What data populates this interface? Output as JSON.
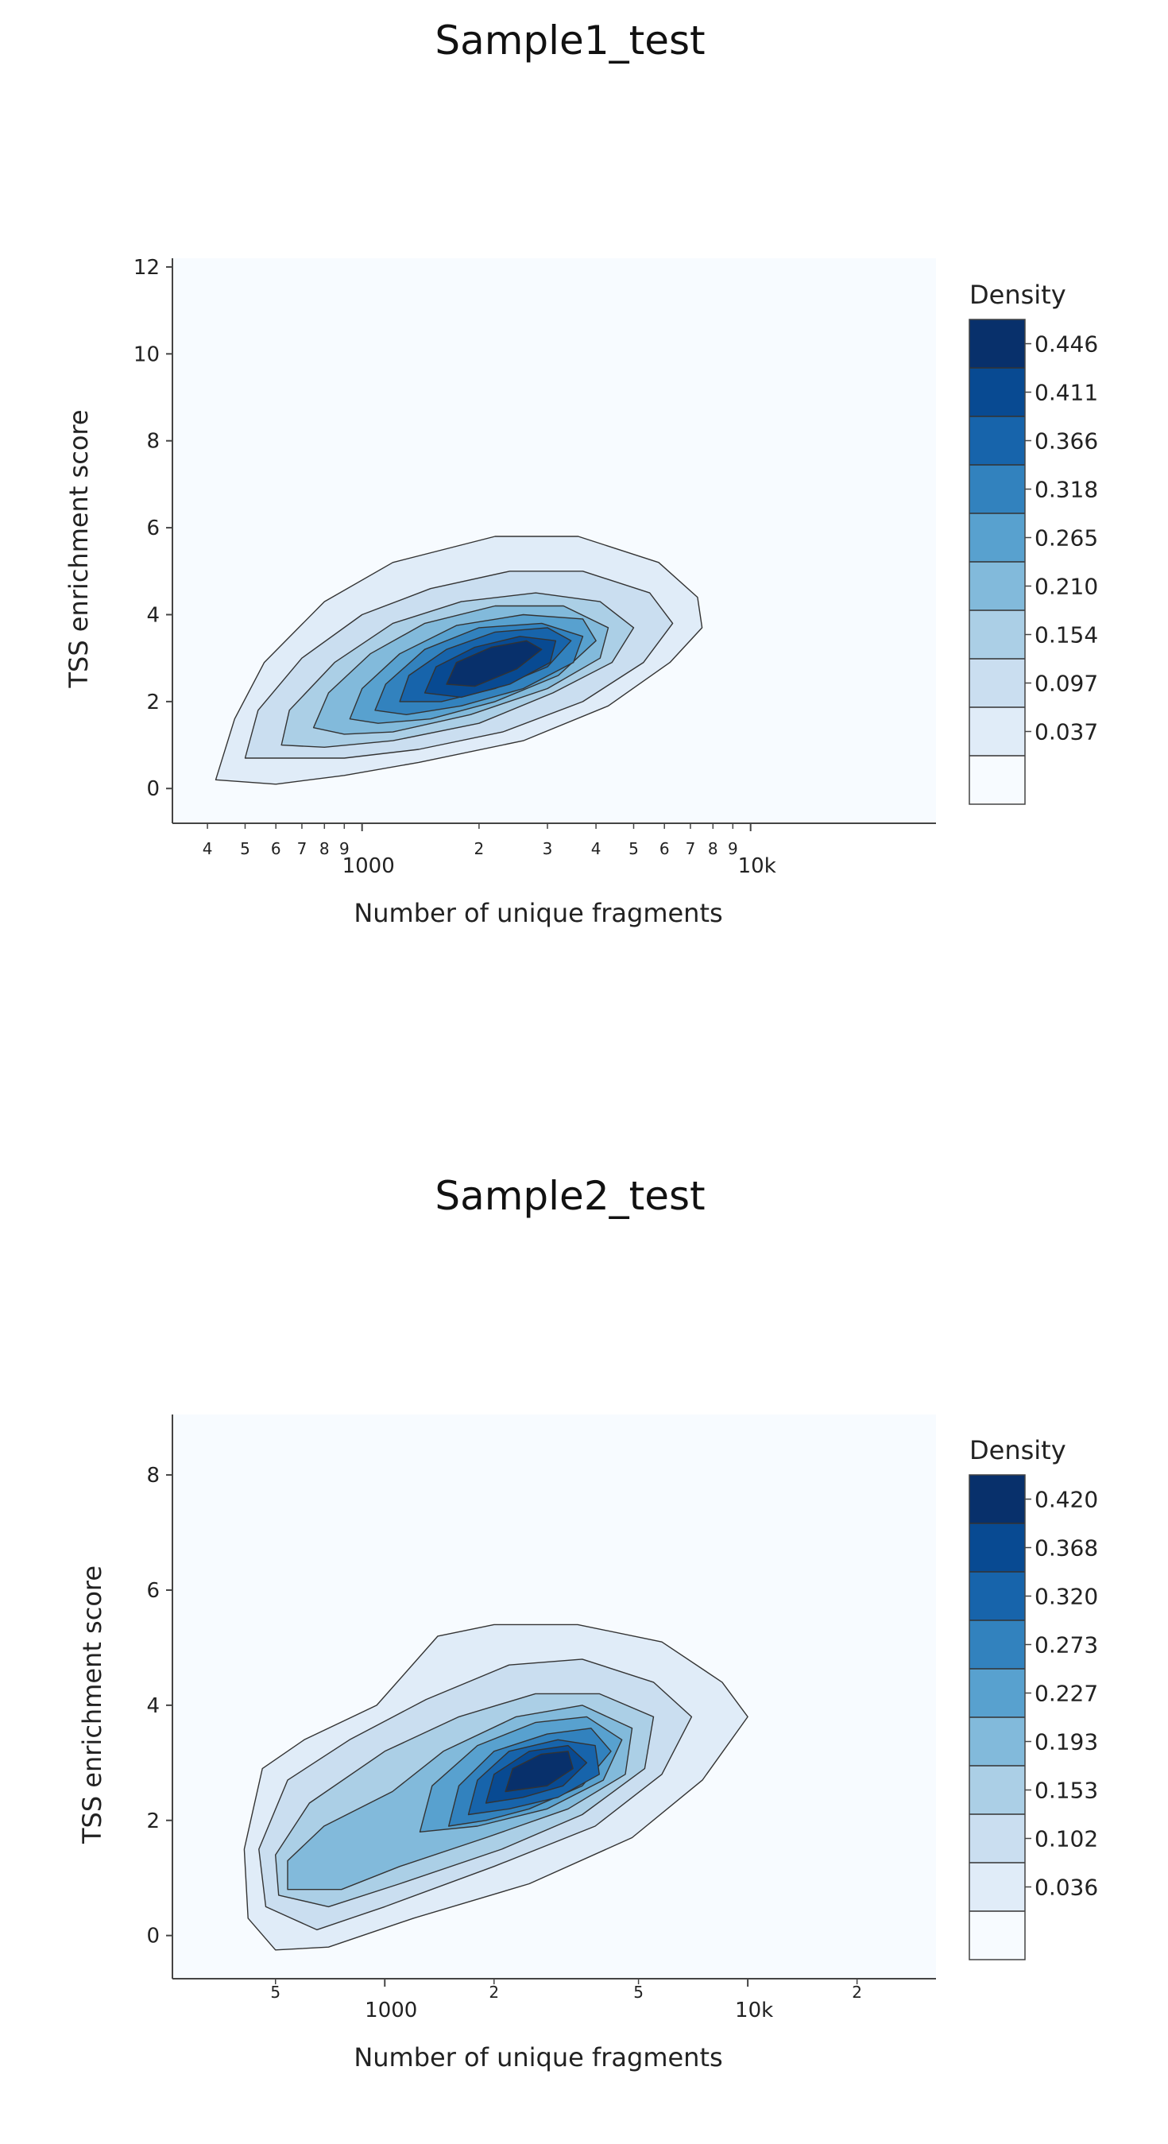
{
  "chart_data": [
    {
      "type": "contour",
      "title": "Sample1_test",
      "xlabel": "Number of unique fragments",
      "ylabel": "TSS enrichment score",
      "xscale": "log",
      "xlim": [
        325,
        30000
      ],
      "ylim": [
        -0.8,
        12.2
      ],
      "y_ticks": [
        0,
        2,
        4,
        6,
        8,
        10,
        12
      ],
      "x_major_ticks": [
        {
          "value": 1000,
          "label": "1000"
        },
        {
          "value": 10000,
          "label": "10k"
        }
      ],
      "x_minor_ticks": [
        {
          "value": 400,
          "label": "4"
        },
        {
          "value": 500,
          "label": "5"
        },
        {
          "value": 600,
          "label": "6"
        },
        {
          "value": 700,
          "label": "7"
        },
        {
          "value": 800,
          "label": "8"
        },
        {
          "value": 900,
          "label": "9"
        },
        {
          "value": 2000,
          "label": "2"
        },
        {
          "value": 3000,
          "label": "3"
        },
        {
          "value": 4000,
          "label": "4"
        },
        {
          "value": 5000,
          "label": "5"
        },
        {
          "value": 6000,
          "label": "6"
        },
        {
          "value": 7000,
          "label": "7"
        },
        {
          "value": 8000,
          "label": "8"
        },
        {
          "value": 9000,
          "label": "9"
        }
      ],
      "colorbar": {
        "title": "Density",
        "ticks": [
          "0.446",
          "0.411",
          "0.366",
          "0.318",
          "0.265",
          "0.210",
          "0.154",
          "0.097",
          "0.037"
        ]
      },
      "colors": [
        "#f7fbff",
        "#e0ecf8",
        "#cadef0",
        "#abcfe6",
        "#82badb",
        "#58a1cf",
        "#3282be",
        "#1764ab",
        "#084a92",
        "#08306b"
      ],
      "density_peak": {
        "x": 2000,
        "y": 2.7
      },
      "density_levels": [
        [
          [
            420,
            0.2
          ],
          [
            470,
            1.6
          ],
          [
            560,
            2.9
          ],
          [
            800,
            4.3
          ],
          [
            1200,
            5.2
          ],
          [
            2200,
            5.8
          ],
          [
            3600,
            5.8
          ],
          [
            5800,
            5.2
          ],
          [
            7300,
            4.4
          ],
          [
            7500,
            3.7
          ],
          [
            6200,
            2.9
          ],
          [
            4300,
            1.9
          ],
          [
            2600,
            1.1
          ],
          [
            1400,
            0.6
          ],
          [
            900,
            0.3
          ],
          [
            600,
            0.1
          ]
        ],
        [
          [
            500,
            0.7
          ],
          [
            540,
            1.8
          ],
          [
            700,
            3.0
          ],
          [
            1000,
            4.0
          ],
          [
            1500,
            4.6
          ],
          [
            2400,
            5.0
          ],
          [
            3700,
            5.0
          ],
          [
            5500,
            4.5
          ],
          [
            6300,
            3.8
          ],
          [
            5300,
            2.9
          ],
          [
            3700,
            2.0
          ],
          [
            2300,
            1.3
          ],
          [
            1400,
            0.9
          ],
          [
            900,
            0.7
          ]
        ],
        [
          [
            620,
            1.0
          ],
          [
            650,
            1.8
          ],
          [
            850,
            2.9
          ],
          [
            1200,
            3.8
          ],
          [
            1800,
            4.3
          ],
          [
            2800,
            4.5
          ],
          [
            4100,
            4.3
          ],
          [
            5000,
            3.7
          ],
          [
            4400,
            2.9
          ],
          [
            3100,
            2.2
          ],
          [
            2000,
            1.5
          ],
          [
            1200,
            1.1
          ],
          [
            800,
            0.95
          ]
        ],
        [
          [
            750,
            1.4
          ],
          [
            820,
            2.2
          ],
          [
            1050,
            3.1
          ],
          [
            1450,
            3.8
          ],
          [
            2200,
            4.2
          ],
          [
            3300,
            4.2
          ],
          [
            4300,
            3.7
          ],
          [
            4100,
            3.0
          ],
          [
            3000,
            2.3
          ],
          [
            1900,
            1.7
          ],
          [
            1200,
            1.3
          ],
          [
            900,
            1.25
          ]
        ],
        [
          [
            930,
            1.6
          ],
          [
            1000,
            2.3
          ],
          [
            1250,
            3.1
          ],
          [
            1750,
            3.75
          ],
          [
            2600,
            4.0
          ],
          [
            3700,
            3.9
          ],
          [
            4000,
            3.4
          ],
          [
            3200,
            2.6
          ],
          [
            2200,
            2.0
          ],
          [
            1500,
            1.6
          ],
          [
            1100,
            1.5
          ]
        ],
        [
          [
            1080,
            1.8
          ],
          [
            1150,
            2.4
          ],
          [
            1450,
            3.2
          ],
          [
            2000,
            3.7
          ],
          [
            2900,
            3.8
          ],
          [
            3700,
            3.5
          ],
          [
            3500,
            2.9
          ],
          [
            2600,
            2.3
          ],
          [
            1800,
            1.9
          ],
          [
            1300,
            1.7
          ]
        ],
        [
          [
            1250,
            2.0
          ],
          [
            1320,
            2.6
          ],
          [
            1650,
            3.2
          ],
          [
            2200,
            3.6
          ],
          [
            3000,
            3.7
          ],
          [
            3450,
            3.4
          ],
          [
            3000,
            2.8
          ],
          [
            2200,
            2.3
          ],
          [
            1600,
            2.0
          ]
        ],
        [
          [
            1450,
            2.2
          ],
          [
            1550,
            2.8
          ],
          [
            1950,
            3.25
          ],
          [
            2550,
            3.5
          ],
          [
            3150,
            3.4
          ],
          [
            3050,
            2.9
          ],
          [
            2400,
            2.4
          ],
          [
            1800,
            2.1
          ]
        ],
        [
          [
            1650,
            2.4
          ],
          [
            1750,
            2.9
          ],
          [
            2150,
            3.25
          ],
          [
            2650,
            3.4
          ],
          [
            2900,
            3.2
          ],
          [
            2500,
            2.75
          ],
          [
            1950,
            2.35
          ]
        ]
      ]
    },
    {
      "type": "contour",
      "title": "Sample2_test",
      "xlabel": "Number of unique fragments",
      "ylabel": "TSS enrichment score",
      "xscale": "log",
      "xlim": [
        260,
        33000
      ],
      "ylim": [
        -0.75,
        9.05
      ],
      "y_ticks": [
        0,
        2,
        4,
        6,
        8
      ],
      "x_major_ticks": [
        {
          "value": 1000,
          "label": "1000"
        },
        {
          "value": 10000,
          "label": "10k"
        }
      ],
      "x_minor_ticks": [
        {
          "value": 500,
          "label": "5"
        },
        {
          "value": 2000,
          "label": "2"
        },
        {
          "value": 5000,
          "label": "5"
        },
        {
          "value": 20000,
          "label": "2"
        }
      ],
      "colorbar": {
        "title": "Density",
        "ticks": [
          "0.420",
          "0.368",
          "0.320",
          "0.273",
          "0.227",
          "0.193",
          "0.153",
          "0.102",
          "0.036"
        ]
      },
      "colors": [
        "#f7fbff",
        "#e0ecf8",
        "#cadef0",
        "#abcfe6",
        "#82badb",
        "#58a1cf",
        "#3282be",
        "#1764ab",
        "#084a92",
        "#08306b"
      ],
      "density_peak": {
        "x": 2400,
        "y": 2.9
      },
      "density_levels": [
        [
          [
            420,
            0.3
          ],
          [
            410,
            1.5
          ],
          [
            460,
            2.9
          ],
          [
            600,
            3.4
          ],
          [
            950,
            4.0
          ],
          [
            1400,
            5.2
          ],
          [
            2000,
            5.4
          ],
          [
            3400,
            5.4
          ],
          [
            5800,
            5.1
          ],
          [
            8500,
            4.4
          ],
          [
            10000,
            3.8
          ],
          [
            7500,
            2.7
          ],
          [
            4800,
            1.7
          ],
          [
            2500,
            0.9
          ],
          [
            1200,
            0.3
          ],
          [
            700,
            -0.2
          ],
          [
            500,
            -0.25
          ]
        ],
        [
          [
            470,
            0.5
          ],
          [
            450,
            1.5
          ],
          [
            540,
            2.7
          ],
          [
            800,
            3.4
          ],
          [
            1300,
            4.1
          ],
          [
            2200,
            4.7
          ],
          [
            3500,
            4.8
          ],
          [
            5500,
            4.4
          ],
          [
            7000,
            3.8
          ],
          [
            5800,
            2.8
          ],
          [
            3800,
            1.9
          ],
          [
            2000,
            1.2
          ],
          [
            1000,
            0.5
          ],
          [
            650,
            0.1
          ]
        ],
        [
          [
            510,
            0.7
          ],
          [
            500,
            1.4
          ],
          [
            620,
            2.3
          ],
          [
            1000,
            3.2
          ],
          [
            1600,
            3.8
          ],
          [
            2600,
            4.2
          ],
          [
            3900,
            4.2
          ],
          [
            5500,
            3.8
          ],
          [
            5200,
            2.9
          ],
          [
            3500,
            2.1
          ],
          [
            2100,
            1.5
          ],
          [
            1100,
            0.9
          ],
          [
            700,
            0.5
          ]
        ],
        [
          [
            540,
            0.8
          ],
          [
            540,
            1.3
          ],
          [
            680,
            1.9
          ],
          [
            1050,
            2.5
          ],
          [
            1450,
            3.2
          ],
          [
            2300,
            3.8
          ],
          [
            3500,
            4.0
          ],
          [
            4800,
            3.6
          ],
          [
            4600,
            2.8
          ],
          [
            3200,
            2.2
          ],
          [
            1900,
            1.7
          ],
          [
            1100,
            1.2
          ],
          [
            760,
            0.8
          ]
        ],
        [
          [
            1250,
            1.8
          ],
          [
            1350,
            2.6
          ],
          [
            1800,
            3.3
          ],
          [
            2600,
            3.7
          ],
          [
            3600,
            3.8
          ],
          [
            4500,
            3.4
          ],
          [
            4000,
            2.7
          ],
          [
            2800,
            2.2
          ],
          [
            1800,
            1.9
          ]
        ],
        [
          [
            1500,
            1.9
          ],
          [
            1600,
            2.6
          ],
          [
            2000,
            3.2
          ],
          [
            2800,
            3.5
          ],
          [
            3700,
            3.6
          ],
          [
            4200,
            3.2
          ],
          [
            3500,
            2.6
          ],
          [
            2500,
            2.2
          ],
          [
            1900,
            2.0
          ]
        ],
        [
          [
            1700,
            2.1
          ],
          [
            1800,
            2.7
          ],
          [
            2200,
            3.2
          ],
          [
            3000,
            3.4
          ],
          [
            3800,
            3.3
          ],
          [
            3900,
            2.8
          ],
          [
            3000,
            2.4
          ],
          [
            2200,
            2.2
          ]
        ],
        [
          [
            1900,
            2.3
          ],
          [
            2000,
            2.8
          ],
          [
            2500,
            3.2
          ],
          [
            3200,
            3.3
          ],
          [
            3600,
            3.0
          ],
          [
            3100,
            2.6
          ],
          [
            2400,
            2.4
          ]
        ],
        [
          [
            2150,
            2.5
          ],
          [
            2250,
            2.9
          ],
          [
            2700,
            3.15
          ],
          [
            3200,
            3.2
          ],
          [
            3300,
            2.9
          ],
          [
            2800,
            2.6
          ]
        ]
      ]
    }
  ]
}
